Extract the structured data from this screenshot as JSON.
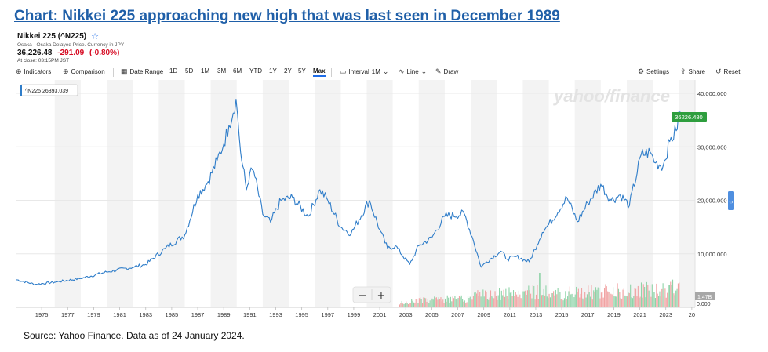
{
  "headline": "Chart: Nikkei 225 approaching new high that was last seen in December 1989",
  "quote": {
    "name": "Nikkei 225 (^N225)",
    "exchange": "Osaka - Osaka Delayed Price. Currency in JPY",
    "price": "36,226.48",
    "change": "-291.09",
    "change_pct": "(-0.80%)",
    "close_time": "At close: 03:15PM JST",
    "change_color": "#d60a22"
  },
  "toolbar": {
    "indicators": "Indicators",
    "comparison": "Comparison",
    "date_range": "Date Range",
    "ranges": [
      "1D",
      "5D",
      "1M",
      "3M",
      "6M",
      "YTD",
      "1Y",
      "2Y",
      "5Y",
      "Max"
    ],
    "active_range": "Max",
    "interval": "Interval",
    "interval_value": "1M",
    "line": "Line",
    "draw": "Draw",
    "settings": "Settings",
    "share": "Share",
    "reset": "Reset",
    "icons": {
      "indicators": "plus-circle-icon",
      "comparison": "plus-circle-icon",
      "date_range": "calendar-icon",
      "interval": "candle-box-icon",
      "line": "line-chart-icon",
      "draw": "pencil-icon",
      "settings": "gear-icon",
      "share": "share-icon",
      "reset": "reset-icon"
    }
  },
  "source_note": "Source: Yahoo Finance. Data as of 24 January 2024.",
  "watermark": "yahoo/finance",
  "zoom_controls": {
    "minus": "−",
    "plus": "+"
  },
  "chart_data": {
    "type": "line",
    "series": [
      {
        "name": "^N225",
        "color": "#2f7dc9",
        "x": [
          1973.0,
          1974.5,
          1976.0,
          1978.0,
          1980.0,
          1982.0,
          1983.0,
          1984.5,
          1986.0,
          1987.0,
          1987.8,
          1988.5,
          1989.0,
          1989.4,
          1989.95,
          1990.3,
          1990.75,
          1991.0,
          1991.3,
          1992.0,
          1992.6,
          1993.4,
          1994.3,
          1995.5,
          1996.4,
          1997.0,
          1998.0,
          1998.8,
          2000.2,
          2001.0,
          2001.6,
          2002.2,
          2003.3,
          2004.0,
          2005.0,
          2006.0,
          2007.5,
          2008.2,
          2008.8,
          2009.2,
          2010.3,
          2010.8,
          2011.5,
          2012.5,
          2013.5,
          2014.0,
          2015.4,
          2016.2,
          2017.0,
          2018.0,
          2018.8,
          2019.5,
          2020.2,
          2021.1,
          2021.8,
          2022.2,
          2022.8,
          2023.3,
          2023.8,
          2024.05
        ],
        "y": [
          5200,
          4300,
          4700,
          5400,
          6600,
          7500,
          8000,
          11000,
          13500,
          21000,
          23500,
          27500,
          30500,
          34000,
          38916,
          29000,
          22000,
          25000,
          25500,
          17400,
          15900,
          20000,
          20500,
          17000,
          22000,
          20000,
          15000,
          13800,
          20000,
          14500,
          11000,
          11500,
          8000,
          11500,
          13000,
          17000,
          17500,
          12500,
          7500,
          8500,
          10500,
          9000,
          9500,
          8500,
          14000,
          15500,
          20500,
          16000,
          19500,
          23000,
          20000,
          21000,
          19000,
          28500,
          29000,
          27000,
          26500,
          31000,
          33000,
          36226
        ]
      }
    ],
    "xticks": [
      "1975",
      "1977",
      "1979",
      "1981",
      "1983",
      "1985",
      "1987",
      "1989",
      "1991",
      "1993",
      "1995",
      "1997",
      "1999",
      "2001",
      "2003",
      "2005",
      "2007",
      "2009",
      "2011",
      "2013",
      "2015",
      "2017",
      "2019",
      "2021",
      "2023",
      "20"
    ],
    "yticks": [
      "10,000.000",
      "20,000.000",
      "30,000.000",
      "40,000.000"
    ],
    "ylim": [
      0,
      42500
    ],
    "xlim": [
      1973.0,
      2025.25
    ],
    "last_value_label": "36226.480",
    "last_value_color": "#2e9e3e",
    "legend_label": "^N225",
    "legend_value": "26393.039",
    "volume": {
      "label": "1.47B",
      "zero_label": "0.000",
      "start": 2002.5,
      "end": 2024.0,
      "up_color": "#8fd3a8",
      "down_color": "#f1a3a3"
    },
    "grid": true,
    "shaded_alternate_years": true
  }
}
